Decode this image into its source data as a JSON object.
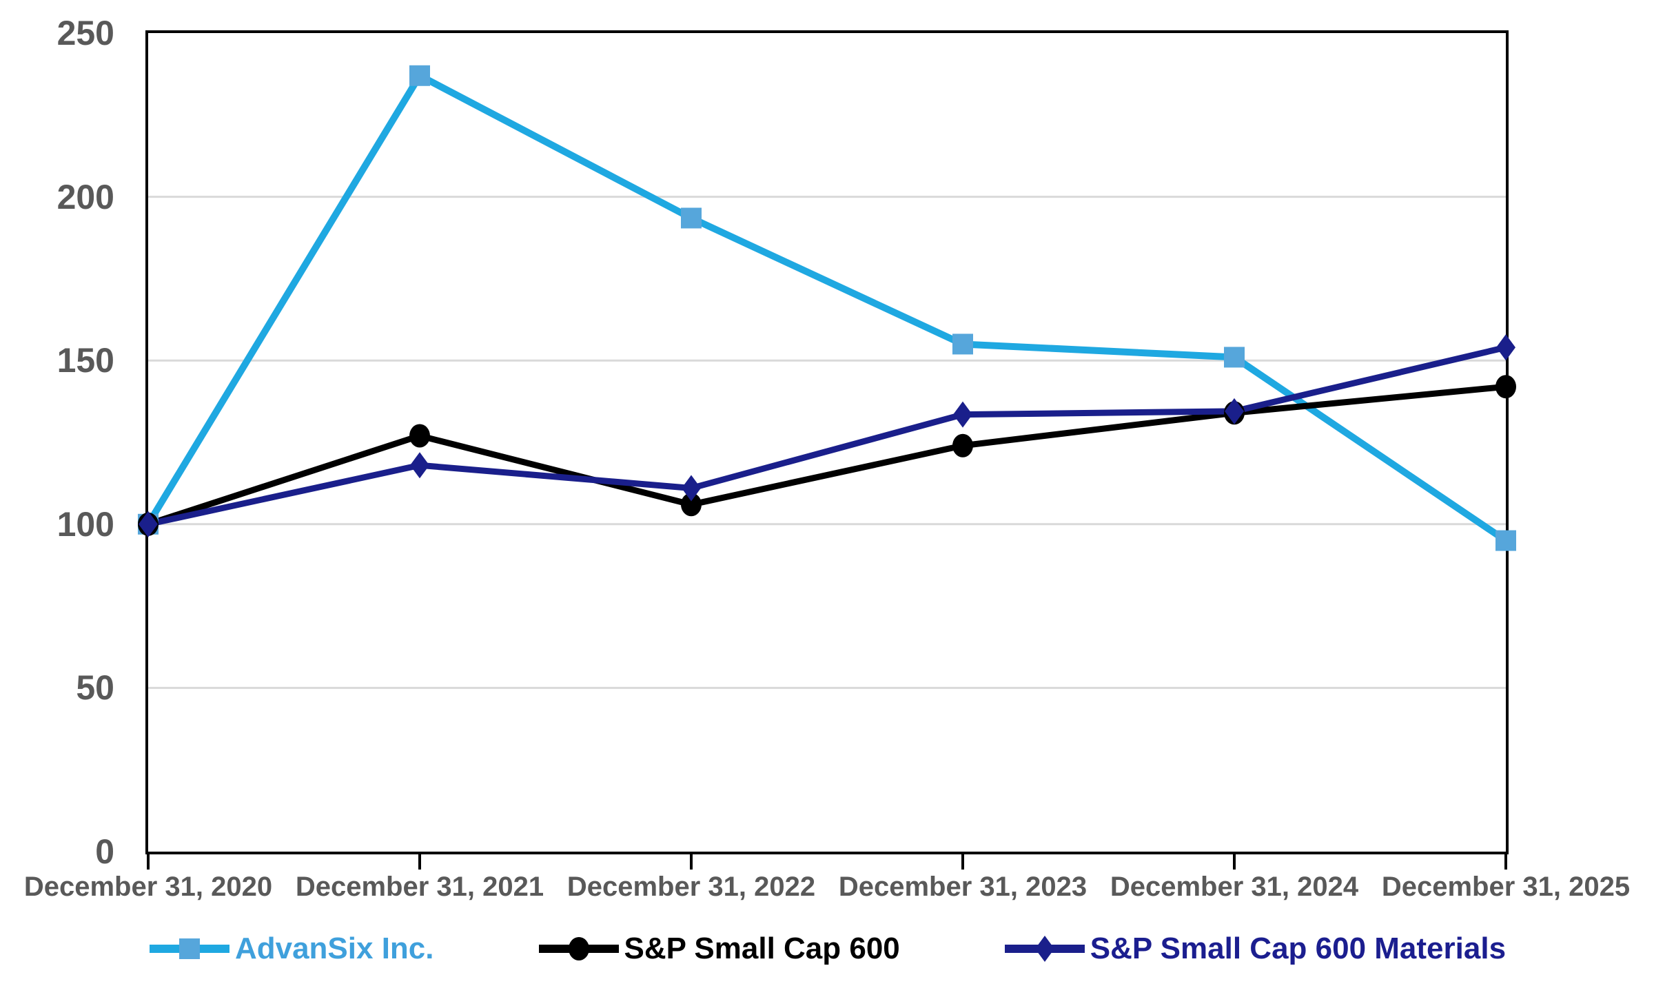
{
  "chart_data": {
    "type": "line",
    "title": "",
    "xlabel": "",
    "ylabel": "",
    "x": [
      "December 31, 2020",
      "December 31, 2021",
      "December 31, 2022",
      "December 31, 2023",
      "December 31, 2024",
      "December 31, 2025"
    ],
    "series": [
      {
        "name": "AdvanSix Inc.",
        "values": [
          100,
          237,
          193.5,
          155,
          151,
          95
        ],
        "line_color": "#1FA8E1",
        "marker": "square",
        "marker_color": "#56A6DB",
        "label_color": "#3FA0DC"
      },
      {
        "name": "S&P Small Cap 600",
        "values": [
          100,
          127,
          106,
          124,
          134,
          142
        ],
        "line_color": "#000000",
        "marker": "circle",
        "marker_color": "#000000",
        "label_color": "#000000"
      },
      {
        "name": "S&P Small Cap 600 Materials",
        "values": [
          100,
          118,
          111,
          133.5,
          134.5,
          154
        ],
        "line_color": "#1A1F8B",
        "marker": "diamond",
        "marker_color": "#1A1F8B",
        "label_color": "#1B1E8F"
      }
    ],
    "ylim": [
      0,
      250
    ],
    "yticks": [
      0,
      50,
      100,
      150,
      200,
      250
    ],
    "grid": "horizontal",
    "gridline_color": "#D9D9D9",
    "axis_label_color": "#595959",
    "axis_line_color": "#000000",
    "legend_position": "bottom"
  }
}
